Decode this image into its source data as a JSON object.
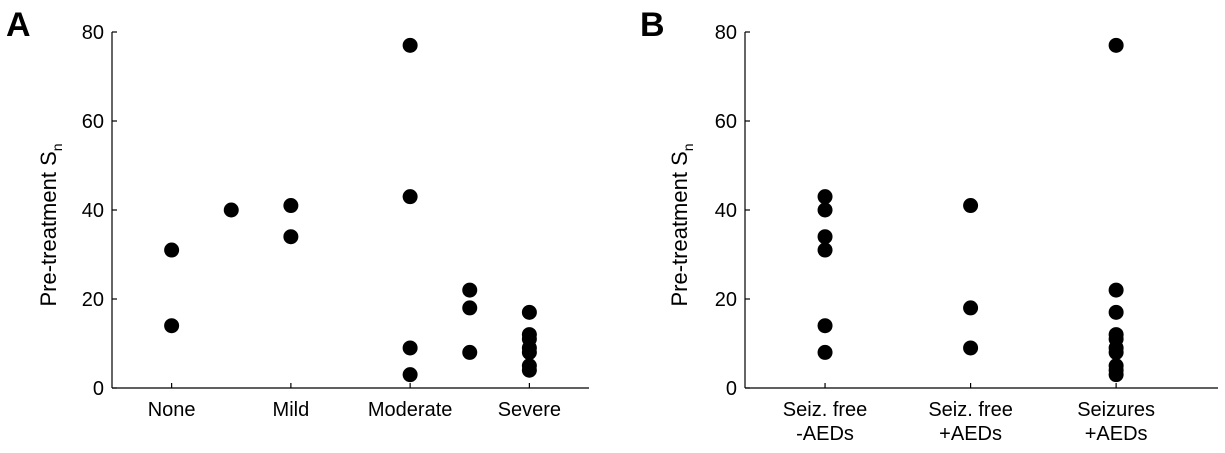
{
  "chart_data": [
    {
      "type": "scatter",
      "panel_label": "A",
      "ylabel": "Pre-treatment S",
      "ylabel_subscript": "n",
      "xlabel": "",
      "ylim": [
        0,
        80
      ],
      "yticks": [
        "0",
        "20",
        "40",
        "60",
        "80"
      ],
      "categories": [
        "None",
        "Mild",
        "Moderate",
        "Severe"
      ],
      "category_positions": [
        1,
        3,
        5,
        7
      ],
      "xlim": [
        0,
        8
      ],
      "grid": false,
      "points": [
        {
          "x": 1,
          "y": 31
        },
        {
          "x": 1,
          "y": 14
        },
        {
          "x": 2,
          "y": 40
        },
        {
          "x": 3,
          "y": 41
        },
        {
          "x": 3,
          "y": 34
        },
        {
          "x": 5,
          "y": 77
        },
        {
          "x": 5,
          "y": 43
        },
        {
          "x": 5,
          "y": 9
        },
        {
          "x": 5,
          "y": 3
        },
        {
          "x": 6,
          "y": 22
        },
        {
          "x": 6,
          "y": 18
        },
        {
          "x": 6,
          "y": 8
        },
        {
          "x": 7,
          "y": 17
        },
        {
          "x": 7,
          "y": 12
        },
        {
          "x": 7,
          "y": 11
        },
        {
          "x": 7,
          "y": 9
        },
        {
          "x": 7,
          "y": 8
        },
        {
          "x": 7,
          "y": 5
        },
        {
          "x": 7,
          "y": 4
        }
      ]
    },
    {
      "type": "scatter",
      "panel_label": "B",
      "ylabel": "Pre-treatment S",
      "ylabel_subscript": "n",
      "xlabel": "",
      "ylim": [
        0,
        80
      ],
      "yticks": [
        "0",
        "20",
        "40",
        "60",
        "80"
      ],
      "categories": [
        [
          "Seiz. free",
          "-AEDs"
        ],
        [
          "Seiz. free",
          "+AEDs"
        ],
        [
          "Seizures",
          "+AEDs"
        ]
      ],
      "category_positions": [
        1,
        2,
        3
      ],
      "xlim": [
        0.45,
        3.7
      ],
      "grid": false,
      "points": [
        {
          "x": 1,
          "y": 43
        },
        {
          "x": 1,
          "y": 40
        },
        {
          "x": 1,
          "y": 34
        },
        {
          "x": 1,
          "y": 31
        },
        {
          "x": 1,
          "y": 14
        },
        {
          "x": 1,
          "y": 8
        },
        {
          "x": 2,
          "y": 41
        },
        {
          "x": 2,
          "y": 18
        },
        {
          "x": 2,
          "y": 9
        },
        {
          "x": 3,
          "y": 77
        },
        {
          "x": 3,
          "y": 22
        },
        {
          "x": 3,
          "y": 17
        },
        {
          "x": 3,
          "y": 12
        },
        {
          "x": 3,
          "y": 11
        },
        {
          "x": 3,
          "y": 9
        },
        {
          "x": 3,
          "y": 8
        },
        {
          "x": 3,
          "y": 5
        },
        {
          "x": 3,
          "y": 4
        },
        {
          "x": 3,
          "y": 3
        }
      ]
    }
  ]
}
